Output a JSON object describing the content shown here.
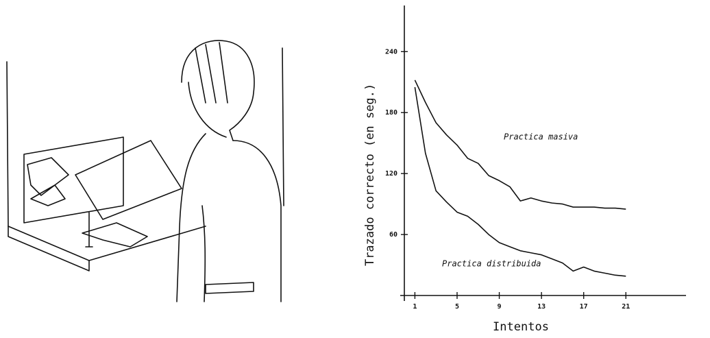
{
  "chart_data": {
    "type": "line",
    "y_label": "Trazado correcto (en seg.)",
    "x_label": "Intentos",
    "x": [
      1,
      2,
      3,
      4,
      5,
      6,
      7,
      8,
      9,
      10,
      11,
      12,
      13,
      14,
      15,
      16,
      17,
      18,
      19,
      20,
      21
    ],
    "series": [
      {
        "name": "Practica masiva",
        "color": "#111111",
        "values": [
          212,
          190,
          170,
          158,
          148,
          135,
          130,
          118,
          113,
          107,
          93,
          96,
          93,
          91,
          90,
          87,
          87,
          87,
          86,
          86,
          85
        ]
      },
      {
        "name": "Practica distribuida",
        "color": "#111111",
        "values": [
          205,
          140,
          103,
          92,
          82,
          78,
          70,
          60,
          52,
          48,
          44,
          42,
          40,
          36,
          32,
          24,
          28,
          24,
          22,
          20,
          19
        ]
      }
    ],
    "xlim": [
      0,
      28
    ],
    "ylim": [
      0,
      280
    ],
    "xticks": [
      1,
      5,
      9,
      13,
      17,
      21
    ],
    "yticks": [
      60,
      120,
      180,
      240
    ]
  }
}
